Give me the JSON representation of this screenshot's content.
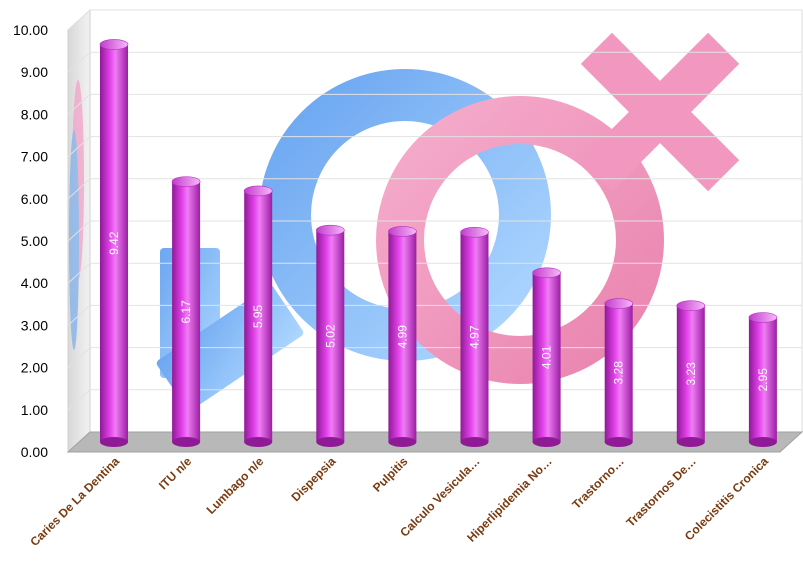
{
  "chart_data": {
    "type": "bar",
    "categories": [
      "Caries De La Dentina",
      "ITU n/e",
      "Lumbago n/e",
      "Dispepsia",
      "Pulpitis",
      "Calculo Vesicula…",
      "Hiperlipidemia No…",
      "Trastorno…",
      "Trastornos De…",
      "Colecistitis Cronica"
    ],
    "values": [
      9.42,
      6.17,
      5.95,
      5.02,
      4.99,
      4.97,
      4.01,
      3.28,
      3.23,
      2.95
    ],
    "data_labels": [
      "9.42",
      "6.17",
      "5.95",
      "5.02",
      "4.99",
      "4.97",
      "4.01",
      "3.28",
      "3.23",
      "2.95"
    ],
    "yticks": [
      "0.00",
      "1.00",
      "2.00",
      "3.00",
      "4.00",
      "5.00",
      "6.00",
      "7.00",
      "8.00",
      "9.00",
      "10.00"
    ],
    "ylim": [
      0,
      10
    ],
    "grid": true,
    "legend": "none",
    "bar_shape": "cylinder",
    "background_image": "gender-symbols-male-female",
    "colors": {
      "bar": "#e040e8",
      "bar_dark": "#8e1a96",
      "bar_light": "#f7b8fb",
      "tick_label_x": "#7a3a10",
      "grid": "#e2e2e2",
      "floor": "#b8b8b8",
      "male_symbol": "#7fb6f2",
      "female_symbol": "#f2a0c6"
    }
  }
}
